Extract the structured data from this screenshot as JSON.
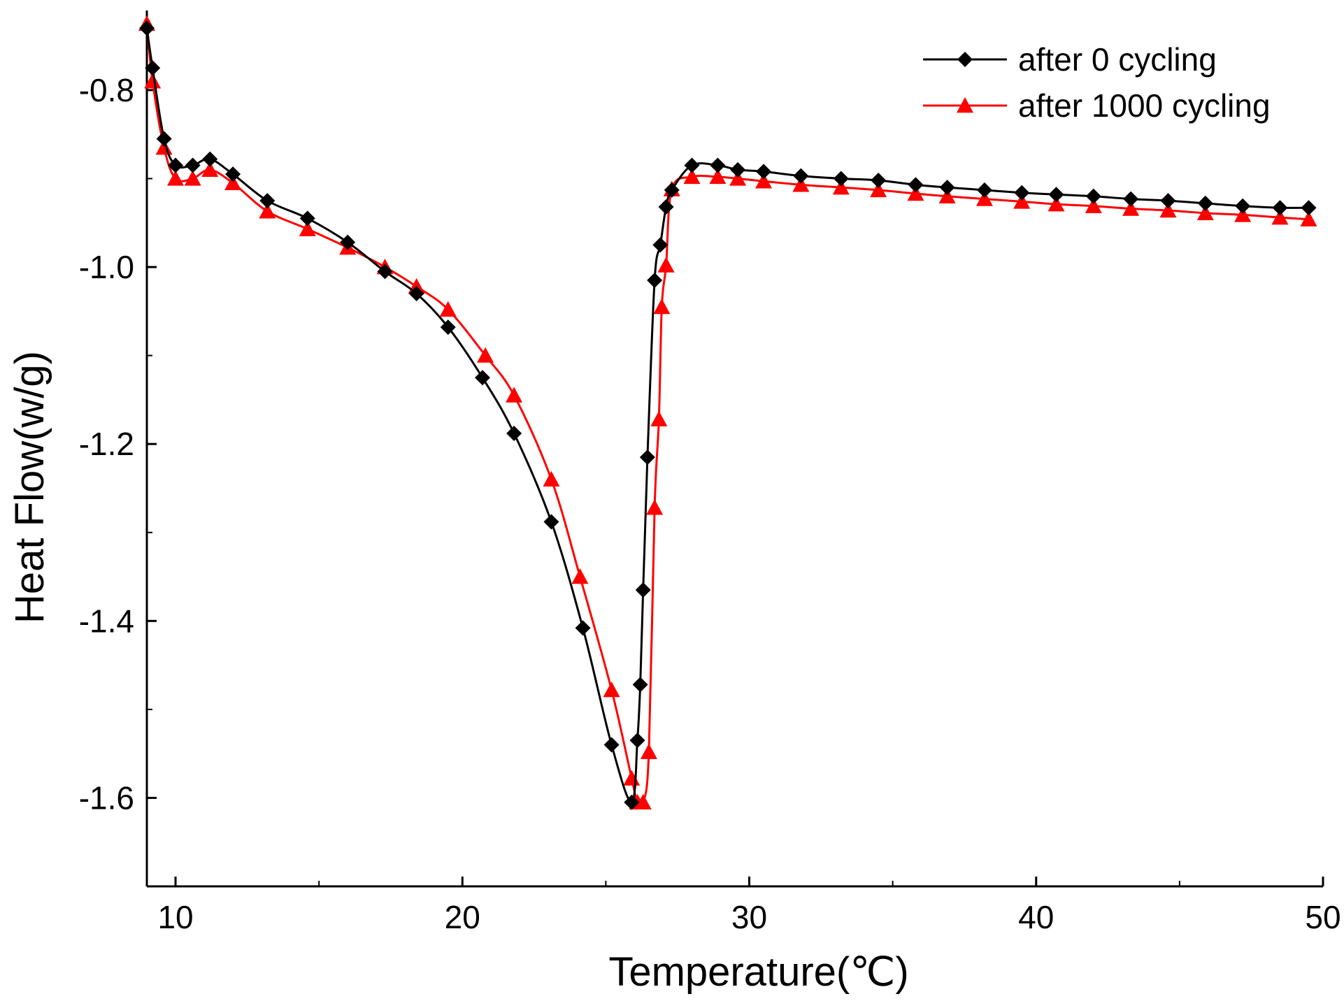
{
  "chart_data": {
    "type": "line",
    "xlabel": "Temperature(℃)",
    "ylabel": "Heat Flow(w/g)",
    "xlim": [
      9,
      50
    ],
    "ylim": [
      -1.7,
      -0.71
    ],
    "xticks": [
      10,
      20,
      30,
      40,
      50
    ],
    "xticks_minor": [
      15,
      25,
      35,
      45
    ],
    "yticks": [
      -0.8,
      -1.0,
      -1.2,
      -1.4,
      -1.6
    ],
    "yticks_minor": [
      -0.9,
      -1.1,
      -1.3,
      -1.5,
      -1.7
    ],
    "ytick_labels": [
      "-0.8",
      "-1.0",
      "-1.2",
      "-1.4",
      "-1.6"
    ],
    "grid": false,
    "legend_position": "top-right",
    "series": [
      {
        "name": "after 0 cycling",
        "color": "#000000",
        "marker": "diamond",
        "points": [
          [
            9.0,
            -0.73
          ],
          [
            9.2,
            -0.775
          ],
          [
            9.6,
            -0.855
          ],
          [
            10.0,
            -0.885
          ],
          [
            10.6,
            -0.885
          ],
          [
            11.2,
            -0.878
          ],
          [
            12.0,
            -0.895
          ],
          [
            13.2,
            -0.925
          ],
          [
            14.6,
            -0.945
          ],
          [
            16.0,
            -0.972
          ],
          [
            17.3,
            -1.005
          ],
          [
            18.4,
            -1.03
          ],
          [
            19.5,
            -1.068
          ],
          [
            20.7,
            -1.125
          ],
          [
            21.8,
            -1.188
          ],
          [
            23.1,
            -1.288
          ],
          [
            24.2,
            -1.408
          ],
          [
            25.2,
            -1.54
          ],
          [
            25.9,
            -1.605
          ],
          [
            26.1,
            -1.535
          ],
          [
            26.2,
            -1.472
          ],
          [
            26.3,
            -1.365
          ],
          [
            26.45,
            -1.215
          ],
          [
            26.7,
            -1.015
          ],
          [
            26.9,
            -0.975
          ],
          [
            27.1,
            -0.932
          ],
          [
            27.3,
            -0.913
          ],
          [
            28.0,
            -0.885
          ],
          [
            28.9,
            -0.885
          ],
          [
            29.6,
            -0.89
          ],
          [
            30.5,
            -0.892
          ],
          [
            31.8,
            -0.897
          ],
          [
            33.2,
            -0.9
          ],
          [
            34.5,
            -0.902
          ],
          [
            35.8,
            -0.907
          ],
          [
            36.9,
            -0.91
          ],
          [
            38.2,
            -0.913
          ],
          [
            39.5,
            -0.916
          ],
          [
            40.7,
            -0.918
          ],
          [
            42.0,
            -0.92
          ],
          [
            43.3,
            -0.923
          ],
          [
            44.6,
            -0.925
          ],
          [
            45.9,
            -0.928
          ],
          [
            47.2,
            -0.931
          ],
          [
            48.5,
            -0.933
          ],
          [
            49.5,
            -0.933
          ]
        ]
      },
      {
        "name": "after 1000 cycling",
        "color": "#ff0000",
        "marker": "triangle",
        "points": [
          [
            9.0,
            -0.725
          ],
          [
            9.2,
            -0.79
          ],
          [
            9.6,
            -0.865
          ],
          [
            10.0,
            -0.9
          ],
          [
            10.6,
            -0.9
          ],
          [
            11.2,
            -0.89
          ],
          [
            12.0,
            -0.905
          ],
          [
            13.2,
            -0.937
          ],
          [
            14.6,
            -0.957
          ],
          [
            16.0,
            -0.978
          ],
          [
            17.3,
            -1.0
          ],
          [
            18.4,
            -1.022
          ],
          [
            19.5,
            -1.048
          ],
          [
            20.8,
            -1.1
          ],
          [
            21.8,
            -1.145
          ],
          [
            23.1,
            -1.24
          ],
          [
            24.1,
            -1.35
          ],
          [
            25.2,
            -1.478
          ],
          [
            25.9,
            -1.578
          ],
          [
            26.1,
            -1.605
          ],
          [
            26.3,
            -1.605
          ],
          [
            26.5,
            -1.548
          ],
          [
            26.7,
            -1.272
          ],
          [
            26.85,
            -1.172
          ],
          [
            26.95,
            -1.045
          ],
          [
            27.1,
            -0.998
          ],
          [
            27.3,
            -0.912
          ],
          [
            28.0,
            -0.898
          ],
          [
            28.9,
            -0.898
          ],
          [
            29.6,
            -0.9
          ],
          [
            30.5,
            -0.903
          ],
          [
            31.8,
            -0.907
          ],
          [
            33.2,
            -0.91
          ],
          [
            34.5,
            -0.913
          ],
          [
            35.8,
            -0.917
          ],
          [
            36.9,
            -0.92
          ],
          [
            38.2,
            -0.923
          ],
          [
            39.5,
            -0.926
          ],
          [
            40.7,
            -0.929
          ],
          [
            42.0,
            -0.931
          ],
          [
            43.3,
            -0.934
          ],
          [
            44.6,
            -0.936
          ],
          [
            45.9,
            -0.939
          ],
          [
            47.2,
            -0.941
          ],
          [
            48.5,
            -0.944
          ],
          [
            49.5,
            -0.946
          ]
        ]
      }
    ]
  }
}
